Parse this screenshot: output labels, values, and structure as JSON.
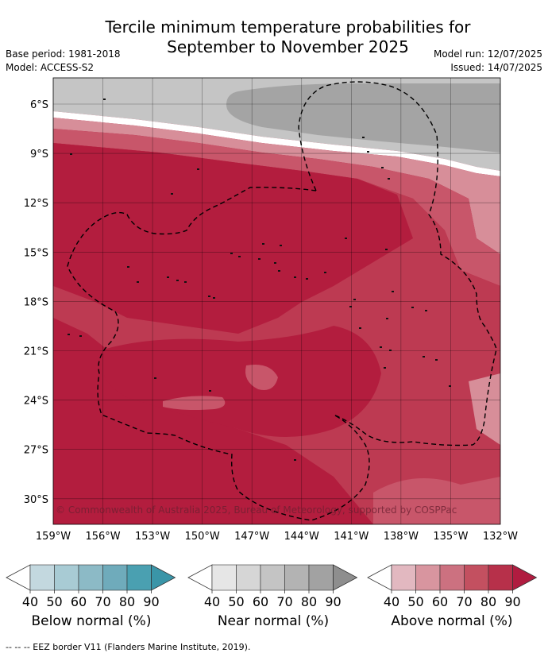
{
  "title_line1": "Tercile minimum temperature probabilities for",
  "title_line2": "September to November 2025",
  "base_period": "Base period: 1981-2018",
  "model": "Model: ACCESS-S2",
  "model_run": "Model run: 12/07/2025",
  "issued": "Issued: 14/07/2025",
  "copyright": "© Commonwealth of Australia 2025, Bureau of Meteorology, supported by COSPPac",
  "lat_labels": [
    "6°S",
    "9°S",
    "12°S",
    "15°S",
    "18°S",
    "21°S",
    "24°S",
    "27°S",
    "30°S"
  ],
  "lon_labels": [
    "159°W",
    "156°W",
    "153°W",
    "150°W",
    "147°W",
    "144°W",
    "141°W",
    "138°W",
    "135°W",
    "132°W"
  ],
  "colorbars": [
    {
      "label": "Below normal (%)",
      "ticks": [
        "40",
        "50",
        "60",
        "70",
        "80",
        "90"
      ],
      "colors": [
        "#ffffff",
        "#c3d8df",
        "#a8cbd4",
        "#8cbac6",
        "#6fabbb",
        "#4aa0b1",
        "#3a95a8"
      ]
    },
    {
      "label": "Near normal (%)",
      "ticks": [
        "40",
        "50",
        "60",
        "70",
        "80",
        "90"
      ],
      "colors": [
        "#ffffff",
        "#e6e6e6",
        "#d6d6d6",
        "#c4c4c4",
        "#b3b3b3",
        "#a2a2a2",
        "#8e8e8e"
      ]
    },
    {
      "label": "Above normal (%)",
      "ticks": [
        "40",
        "50",
        "60",
        "70",
        "80",
        "90"
      ],
      "colors": [
        "#ffffff",
        "#e2b8c0",
        "#d8959f",
        "#cc7180",
        "#c35060",
        "#b7304a",
        "#b01c40"
      ]
    }
  ],
  "footer": "--  --  -- EEZ border V11 (Flanders Marine Institute, 2019)."
}
